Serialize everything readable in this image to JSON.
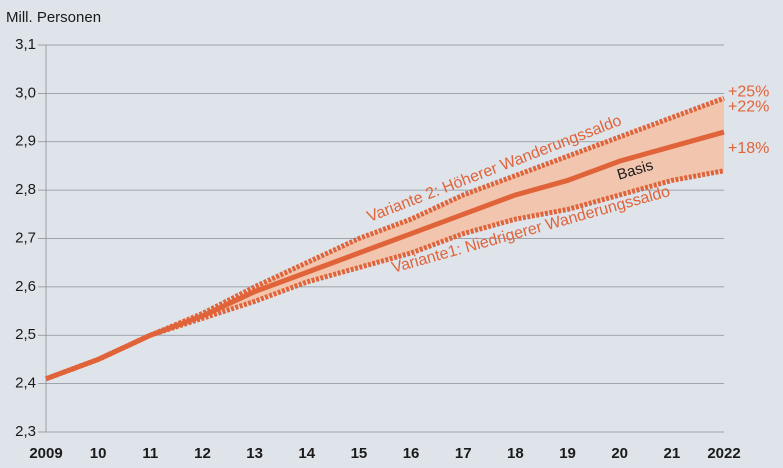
{
  "chart_data": {
    "type": "line",
    "ylabel": "Mill. Personen",
    "categories": [
      "2009",
      "10",
      "11",
      "12",
      "13",
      "14",
      "15",
      "16",
      "17",
      "18",
      "19",
      "20",
      "21",
      "2022"
    ],
    "ylim": [
      2.3,
      3.1
    ],
    "yticks": [
      {
        "value": 2.3,
        "label": "2,3"
      },
      {
        "value": 2.4,
        "label": "2,4"
      },
      {
        "value": 2.5,
        "label": "2,5"
      },
      {
        "value": 2.6,
        "label": "2,6"
      },
      {
        "value": 2.7,
        "label": "2,7"
      },
      {
        "value": 2.8,
        "label": "2,8"
      },
      {
        "value": 2.9,
        "label": "2,9"
      },
      {
        "value": 3.0,
        "label": "3,0"
      },
      {
        "value": 3.1,
        "label": "3,1"
      }
    ],
    "grid": true,
    "band_color": "#f2c6ae",
    "series": [
      {
        "name": "Variante 2: Höherer Wanderungssaldo",
        "end_label": "+25%",
        "color": "#e0633a",
        "dashed": true,
        "values": [
          2.41,
          2.45,
          2.5,
          2.545,
          2.6,
          2.65,
          2.7,
          2.74,
          2.79,
          2.83,
          2.87,
          2.91,
          2.95,
          2.99
        ]
      },
      {
        "name": "Basis",
        "end_label": "+22%",
        "color": "#e0633a",
        "dashed": false,
        "values": [
          2.41,
          2.45,
          2.5,
          2.54,
          2.59,
          2.63,
          2.67,
          2.71,
          2.75,
          2.79,
          2.82,
          2.86,
          2.89,
          2.92
        ]
      },
      {
        "name": "Variante1: Niedrigerer Wanderungssaldo",
        "end_label": "+18%",
        "color": "#e0633a",
        "dashed": true,
        "values": [
          2.41,
          2.45,
          2.5,
          2.535,
          2.57,
          2.61,
          2.64,
          2.67,
          2.71,
          2.74,
          2.76,
          2.79,
          2.82,
          2.84
        ]
      }
    ]
  }
}
